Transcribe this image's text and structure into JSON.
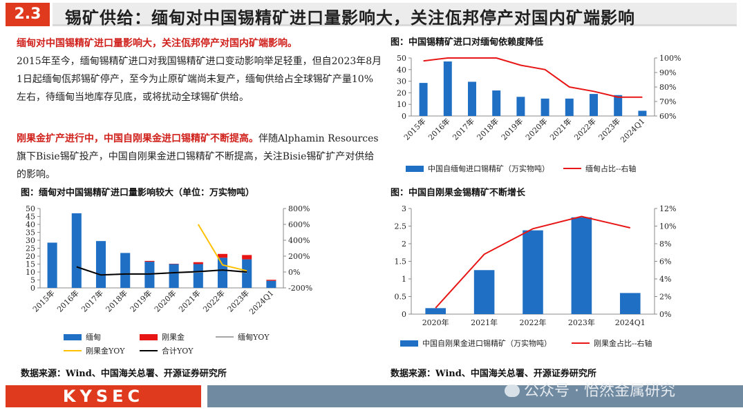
{
  "header": {
    "section_number": "2.3",
    "title": "锡矿供给：缅甸对中国锡精矿进口量影响大，关注佤邦停产对国内矿端影响"
  },
  "text": {
    "para1_head": "缅甸对中国锡精矿进口量影响大，关注佤邦停产对国内矿端影响。",
    "para1_body": "2015年至今，缅甸锡精矿进口对我国锡精矿进口变动影响举足轻重，但自2023年8月1日起缅甸佤邦锡矿停产，至今为止原矿端尚未复产，缅甸供给占全球锡矿产量10%左右，待缅甸当地库存见底，或将扰动全球锡矿供给。",
    "para2_head": "刚果金扩产进行中，中国自刚果金进口锡精矿不断提高。",
    "para2_body": "伴随Alphamin Resources旗下Bisie锡矿投产，中国自刚果金进口锡精矿不断提高，关注Bisie锡矿扩产对供给的影响。"
  },
  "captions": {
    "c1": "图：中国锡精矿进口对缅甸依赖度降低",
    "c2": "图：缅甸对中国锡精矿进口量影响较大（单位：万实物吨）",
    "c3": "图：中国自刚果金锡精矿不断增长",
    "source_left": "数据来源：Wind、中国海关总署、开源证券研究所",
    "source_right": "数据来源：Wind、中国海关总署、开源证券研究所"
  },
  "footer": {
    "logo": "KYSEC",
    "watermark": "公众号 · 怡然金属研究"
  },
  "chart_data": [
    {
      "type": "bar",
      "categories": [
        "2015年",
        "2016年",
        "2017年",
        "2018年",
        "2019年",
        "2020年",
        "2021年",
        "2022年",
        "2023年",
        "2024Q1"
      ],
      "series": [
        {
          "name": "中国自缅甸进口锡精矿（万实物吨）",
          "type": "bar",
          "color": "#1f6fc4",
          "values": [
            28.5,
            47,
            29.5,
            22,
            16.5,
            15,
            15,
            19,
            18,
            4.5
          ]
        },
        {
          "name": "缅甸占比--右轴",
          "type": "line",
          "axis": "right",
          "color": "#e81515",
          "values": [
            98,
            100,
            100,
            100,
            95,
            92,
            80,
            77,
            73,
            73
          ]
        }
      ],
      "y_left": {
        "min": 0,
        "max": 50,
        "ticks": [
          "0",
          "10",
          "20",
          "30",
          "40",
          "50"
        ]
      },
      "y_right": {
        "min": 60,
        "max": 100,
        "ticks": [
          "60%",
          "70%",
          "80%",
          "90%",
          "100%"
        ]
      }
    },
    {
      "type": "bar",
      "categories": [
        "2015年",
        "2016年",
        "2017年",
        "2018年",
        "2019年",
        "2020年",
        "2021年",
        "2022年",
        "2023年",
        "2024Q1"
      ],
      "series": [
        {
          "name": "缅甸",
          "type": "bar",
          "stack": "s",
          "color": "#1f6fc4",
          "values": [
            28.5,
            47,
            29.5,
            22,
            16.5,
            15,
            15,
            19,
            18,
            4.5
          ]
        },
        {
          "name": "刚果金",
          "type": "bar",
          "stack": "s",
          "color": "#e81515",
          "values": [
            0,
            0,
            0,
            0,
            0.5,
            0.2,
            1.2,
            2.4,
            2.7,
            0.6
          ]
        },
        {
          "name": "缅甸YOY",
          "type": "line",
          "axis": "right",
          "color": "#a6a6a6",
          "values": [
            null,
            65,
            -37,
            -25,
            -25,
            -9,
            0,
            27,
            -5,
            null
          ]
        },
        {
          "name": "刚果金YOY",
          "type": "line",
          "axis": "right",
          "color": "#ffc000",
          "values": [
            null,
            null,
            null,
            null,
            null,
            null,
            600,
            90,
            15,
            null
          ]
        },
        {
          "name": "合计YOY",
          "type": "line",
          "axis": "right",
          "color": "#000000",
          "values": [
            null,
            65,
            -37,
            -25,
            -25,
            -9,
            5,
            25,
            0,
            null
          ]
        }
      ],
      "y_left": {
        "min": 0,
        "max": 50,
        "ticks": [
          "0",
          "5",
          "10",
          "15",
          "20",
          "25",
          "30",
          "35",
          "40",
          "45",
          "50"
        ]
      },
      "y_right": {
        "min": -200,
        "max": 800,
        "ticks": [
          "-200%",
          "0%",
          "200%",
          "400%",
          "600%",
          "800%"
        ]
      }
    },
    {
      "type": "bar",
      "categories": [
        "2020年",
        "2021年",
        "2022年",
        "2023年",
        "2024Q1"
      ],
      "series": [
        {
          "name": "中国自刚果金进口锡精矿（万实物吨）",
          "type": "bar",
          "color": "#1f6fc4",
          "values": [
            0.17,
            1.25,
            2.38,
            2.75,
            0.6
          ]
        },
        {
          "name": "刚果金占比--右轴",
          "type": "line",
          "axis": "right",
          "color": "#e81515",
          "values": [
            0.7,
            6.8,
            9.7,
            11.1,
            9.8
          ]
        }
      ],
      "y_left": {
        "min": 0,
        "max": 3,
        "ticks": [
          "0",
          "0.5",
          "1",
          "1.5",
          "2",
          "2.5",
          "3"
        ]
      },
      "y_right": {
        "min": 0,
        "max": 12,
        "ticks": [
          "0%",
          "2%",
          "4%",
          "6%",
          "8%",
          "10%",
          "12%"
        ]
      }
    }
  ]
}
